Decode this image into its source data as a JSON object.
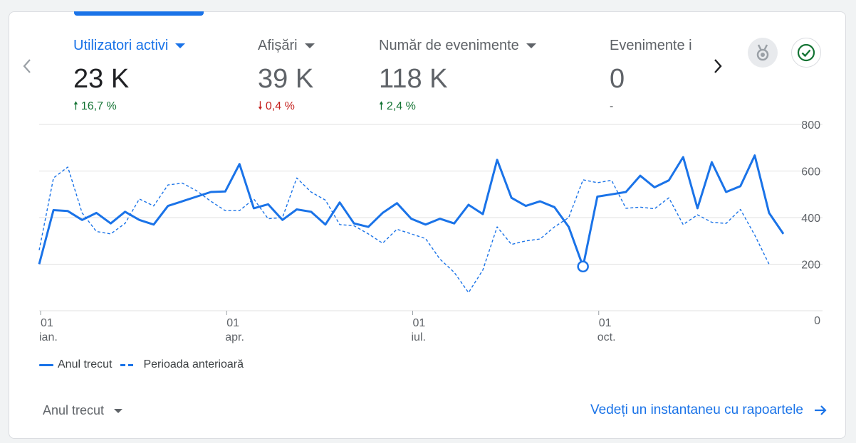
{
  "metrics": [
    {
      "label": "Utilizatori activi",
      "value": "23 K",
      "change": "16,7 %",
      "direction": "up",
      "active": true
    },
    {
      "label": "Afișări",
      "value": "39 K",
      "change": "0,4 %",
      "direction": "down",
      "active": false
    },
    {
      "label": "Număr de evenimente",
      "value": "118 K",
      "change": "2,4 %",
      "direction": "up",
      "active": false
    },
    {
      "label": "Evenimente i",
      "value": "0",
      "change": "-",
      "direction": "none",
      "active": false
    }
  ],
  "icons": {
    "prev": "chevron-left-icon",
    "next": "chevron-right-icon",
    "badge": "medal-icon",
    "check": "check-circle-icon",
    "arrow": "arrow-right-icon"
  },
  "colors": {
    "accent": "#1a73e8",
    "up": "#137333",
    "down": "#c5221f",
    "grid": "#e0e0e0"
  },
  "chart_data": {
    "type": "line",
    "y_ticks": [
      "800",
      "600",
      "400",
      "200",
      "0"
    ],
    "ylim": [
      0,
      800
    ],
    "x_ticks": [
      {
        "day": "01",
        "month": "ian.",
        "index": 0
      },
      {
        "day": "01",
        "month": "apr.",
        "index": 13
      },
      {
        "day": "01",
        "month": "iul.",
        "index": 26
      },
      {
        "day": "01",
        "month": "oct.",
        "index": 39
      }
    ],
    "series": [
      {
        "name": "Anul trecut",
        "style": "solid",
        "values": [
          200,
          432,
          428,
          390,
          420,
          375,
          425,
          390,
          370,
          450,
          470,
          490,
          510,
          512,
          630,
          440,
          457,
          390,
          435,
          425,
          370,
          465,
          375,
          360,
          420,
          462,
          395,
          370,
          395,
          375,
          455,
          415,
          648,
          485,
          450,
          470,
          445,
          360,
          190,
          490,
          500,
          510,
          580,
          530,
          560,
          660,
          440,
          638,
          510,
          535,
          667,
          420,
          330
        ],
        "highlight_index": 38
      },
      {
        "name": "Perioada anterioară",
        "style": "dashed",
        "values": [
          260,
          570,
          617,
          420,
          340,
          330,
          375,
          480,
          450,
          540,
          548,
          515,
          470,
          430,
          430,
          480,
          395,
          400,
          570,
          510,
          475,
          370,
          365,
          330,
          290,
          350,
          330,
          310,
          222,
          165,
          78,
          175,
          360,
          285,
          300,
          308,
          360,
          400,
          562,
          550,
          560,
          440,
          445,
          438,
          485,
          370,
          412,
          380,
          375,
          435,
          325,
          200
        ]
      }
    ]
  },
  "legend": [
    {
      "label": "Anul trecut",
      "style": "solid"
    },
    {
      "label": "Perioada anterioară",
      "style": "dashed"
    }
  ],
  "footer": {
    "period": "Anul trecut",
    "link": "Vedeți un instantaneu cu rapoartele"
  }
}
